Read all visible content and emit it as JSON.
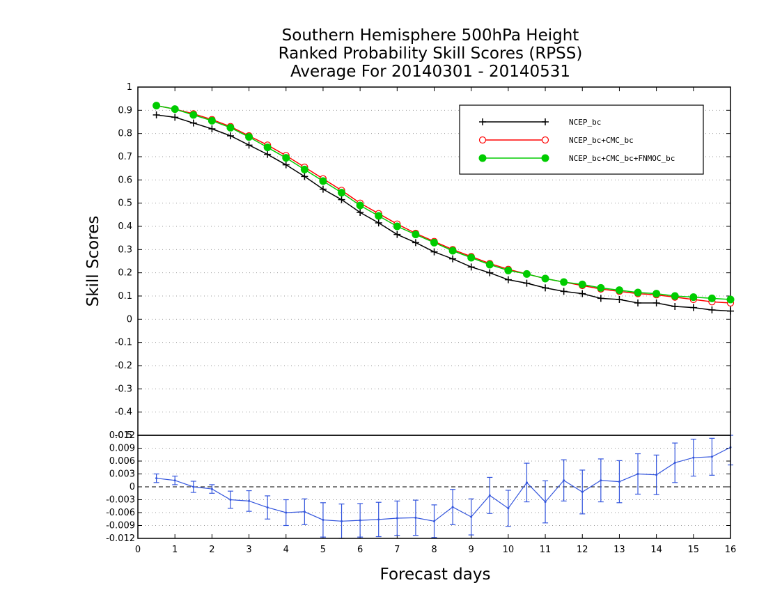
{
  "chart_data": [
    {
      "type": "line",
      "title": [
        "Southern Hemisphere 500hPa Height",
        "Ranked Probability Skill Scores (RPSS)",
        "Average For 20140301 - 20140531"
      ],
      "xlabel": "Forecast days",
      "ylabel": "Skill Scores",
      "xlim": [
        0,
        16
      ],
      "ylim": [
        -0.5,
        1
      ],
      "yticks": [
        "1",
        "0.9",
        "0.8",
        "0.7",
        "0.6",
        "0.5",
        "0.4",
        "0.3",
        "0.2",
        "0.1",
        "0",
        "-0.1",
        "-0.2",
        "-0.3",
        "-0.4",
        "-0.5"
      ],
      "grid": true,
      "legend_position": "top-right",
      "x": [
        0.5,
        1.0,
        1.5,
        2.0,
        2.5,
        3.0,
        3.5,
        4.0,
        4.5,
        5.0,
        5.5,
        6.0,
        6.5,
        7.0,
        7.5,
        8.0,
        8.5,
        9.0,
        9.5,
        10.0,
        10.5,
        11.0,
        11.5,
        12.0,
        12.5,
        13.0,
        13.5,
        14.0,
        14.5,
        15.0,
        15.5,
        16.0
      ],
      "series": [
        {
          "name": "NCEP_bc",
          "color": "#000000",
          "marker": "plus",
          "values": [
            0.88,
            0.87,
            0.845,
            0.82,
            0.79,
            0.75,
            0.71,
            0.665,
            0.615,
            0.56,
            0.515,
            0.46,
            0.415,
            0.365,
            0.33,
            0.29,
            0.26,
            0.225,
            0.2,
            0.17,
            0.155,
            0.135,
            0.12,
            0.11,
            0.09,
            0.085,
            0.07,
            0.07,
            0.055,
            0.05,
            0.04,
            0.035
          ]
        },
        {
          "name": "NCEP_bc+CMC_bc",
          "color": "#ff0000",
          "marker": "open-circle",
          "values": [
            0.92,
            0.905,
            0.885,
            0.86,
            0.83,
            0.79,
            0.75,
            0.705,
            0.655,
            0.605,
            0.555,
            0.5,
            0.455,
            0.41,
            0.37,
            0.335,
            0.3,
            0.27,
            0.24,
            0.215,
            0.195,
            0.175,
            0.16,
            0.145,
            0.13,
            0.12,
            0.11,
            0.105,
            0.095,
            0.085,
            0.075,
            0.07
          ]
        },
        {
          "name": "NCEP_bc+CMC_bc+FNMOC_bc",
          "color": "#00cc00",
          "marker": "filled-circle",
          "values": [
            0.92,
            0.905,
            0.88,
            0.855,
            0.825,
            0.785,
            0.74,
            0.695,
            0.645,
            0.595,
            0.545,
            0.49,
            0.445,
            0.4,
            0.365,
            0.33,
            0.295,
            0.265,
            0.235,
            0.21,
            0.195,
            0.175,
            0.16,
            0.15,
            0.135,
            0.125,
            0.115,
            0.11,
            0.1,
            0.095,
            0.09,
            0.085
          ]
        }
      ]
    },
    {
      "type": "line",
      "xlabel": "Forecast days",
      "xlim": [
        0,
        16
      ],
      "xticks": [
        "0",
        "1",
        "2",
        "3",
        "4",
        "5",
        "6",
        "7",
        "8",
        "9",
        "10",
        "11",
        "12",
        "13",
        "14",
        "15",
        "16"
      ],
      "ylim": [
        -0.012,
        0.012
      ],
      "yticks": [
        "0.012",
        "0.009",
        "0.006",
        "0.003",
        "0",
        "-0.003",
        "-0.006",
        "-0.009",
        "-0.012"
      ],
      "grid": true,
      "reference_line": 0,
      "x": [
        0.5,
        1.0,
        1.5,
        2.0,
        2.5,
        3.0,
        3.5,
        4.0,
        4.5,
        5.0,
        5.5,
        6.0,
        6.5,
        7.0,
        7.5,
        8.0,
        8.5,
        9.0,
        9.5,
        10.0,
        10.5,
        11.0,
        11.5,
        12.0,
        12.5,
        13.0,
        13.5,
        14.0,
        14.5,
        15.0,
        15.5,
        16.0
      ],
      "series": [
        {
          "color": "#3355dd",
          "error_bars": true,
          "values": [
            0.002,
            0.0015,
            0.0,
            -0.0005,
            -0.003,
            -0.0033,
            -0.0048,
            -0.006,
            -0.0058,
            -0.0077,
            -0.008,
            -0.0078,
            -0.0076,
            -0.0073,
            -0.0072,
            -0.008,
            -0.0047,
            -0.007,
            -0.002,
            -0.005,
            0.001,
            -0.0035,
            0.0015,
            -0.0012,
            0.0015,
            0.0012,
            0.003,
            0.0028,
            0.0056,
            0.0068,
            0.007,
            0.0092
          ],
          "lower": [
            0.001,
            0.0005,
            -0.0013,
            -0.0015,
            -0.005,
            -0.0057,
            -0.0075,
            -0.009,
            -0.0088,
            -0.0117,
            -0.012,
            -0.0117,
            -0.0116,
            -0.0113,
            -0.0113,
            -0.0118,
            -0.0088,
            -0.0112,
            -0.0062,
            -0.0092,
            -0.0035,
            -0.0084,
            -0.0033,
            -0.0063,
            -0.0035,
            -0.0037,
            -0.0017,
            -0.0018,
            0.001,
            0.0025,
            0.0027,
            0.0051
          ],
          "upper": [
            0.003,
            0.0025,
            0.0013,
            0.0005,
            -0.001,
            -0.0009,
            -0.0021,
            -0.003,
            -0.0028,
            -0.0037,
            -0.004,
            -0.0039,
            -0.0036,
            -0.0033,
            -0.0031,
            -0.0042,
            -0.0006,
            -0.0028,
            0.0022,
            -0.0008,
            0.0055,
            0.0014,
            0.0063,
            0.0039,
            0.0065,
            0.0061,
            0.0077,
            0.0074,
            0.0102,
            0.0111,
            0.0113,
            0.0133
          ]
        }
      ]
    }
  ]
}
